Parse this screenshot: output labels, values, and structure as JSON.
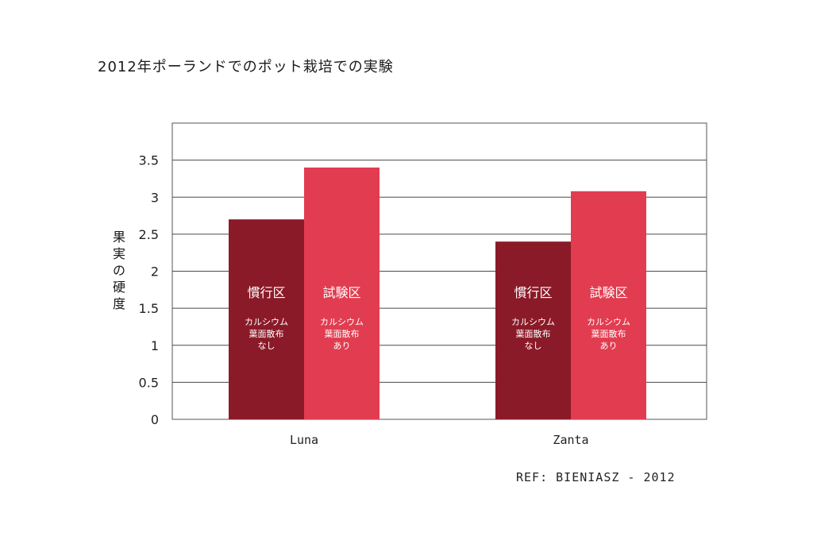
{
  "chart_data": {
    "type": "bar",
    "title": "2012年ポーランドでのポット栽培での実験",
    "xlabel": "",
    "ylabel": "果実の硬度",
    "categories": [
      "Luna",
      "Zanta"
    ],
    "series": [
      {
        "label": "慣行区",
        "sublabel": [
          "カルシウム",
          "葉面散布",
          "なし"
        ],
        "color": "#8b1a28",
        "values": [
          2.7,
          2.4
        ]
      },
      {
        "label": "試験区",
        "sublabel": [
          "カルシウム",
          "葉面散布",
          "あり"
        ],
        "color": "#e23c50",
        "values": [
          3.4,
          3.08
        ]
      }
    ],
    "y_ticks": [
      "0",
      "0.5",
      "1",
      "1.5",
      "2",
      "2.5",
      "3",
      "3.5"
    ],
    "ylim": [
      0,
      4
    ],
    "grid": true,
    "legend": "none"
  },
  "footer": {
    "reference": "REF: BIENIASZ - 2012"
  }
}
